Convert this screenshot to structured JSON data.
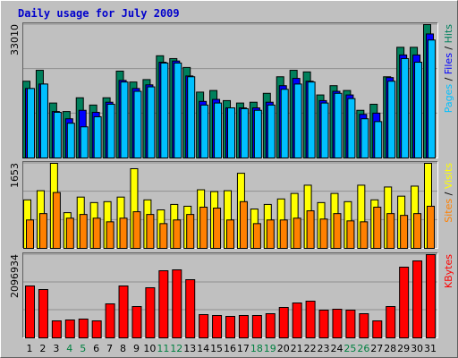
{
  "chart_data": [
    {
      "type": "bar",
      "title": "Daily usage for July 2009",
      "legend_separator": " / ",
      "grid": true,
      "ylim": [
        0,
        33010
      ],
      "yticks": [
        33010
      ],
      "series": [
        {
          "name": "Hits",
          "color": "#00805c",
          "values": [
            19000,
            21700,
            13600,
            11500,
            14900,
            13100,
            14900,
            21500,
            18800,
            19400,
            25300,
            24600,
            22400,
            16300,
            16700,
            14200,
            13600,
            13800,
            16000,
            20100,
            21700,
            21300,
            15600,
            17900,
            16700,
            11800,
            13300,
            20100,
            27400,
            27400,
            33010
          ]
        },
        {
          "name": "Files",
          "color": "#0000ff",
          "values": [
            17200,
            18300,
            11500,
            9700,
            11800,
            11300,
            13800,
            19200,
            17200,
            18100,
            23700,
            24000,
            20300,
            14000,
            14500,
            12400,
            12400,
            12400,
            13800,
            17900,
            19700,
            19000,
            14200,
            16500,
            15600,
            10800,
            11100,
            19900,
            25500,
            25500,
            30700
          ]
        },
        {
          "name": "Pages",
          "color": "#00c0ff",
          "values": [
            17200,
            18300,
            11300,
            8600,
            7700,
            10200,
            13300,
            18800,
            16500,
            17600,
            23500,
            23500,
            20100,
            13100,
            13600,
            12400,
            12200,
            11800,
            13100,
            17000,
            18300,
            18800,
            13600,
            16000,
            14700,
            9700,
            9000,
            19000,
            24600,
            23700,
            29200
          ]
        }
      ]
    },
    {
      "type": "bar",
      "legend_separator": " / ",
      "grid": true,
      "ylim": [
        0,
        1653
      ],
      "yticks": [
        1653
      ],
      "series": [
        {
          "name": "Visits",
          "color": "#ffff00",
          "values": [
            943,
            1121,
            1653,
            694,
            997,
            890,
            908,
            997,
            1549,
            943,
            748,
            854,
            819,
            1139,
            1104,
            1121,
            1460,
            765,
            854,
            961,
            1068,
            1228,
            890,
            1068,
            908,
            1228,
            943,
            1193,
            1015,
            1210,
            1653
          ]
        },
        {
          "name": "Sites",
          "color": "#ff8000",
          "values": [
            552,
            676,
            1086,
            587,
            659,
            587,
            516,
            587,
            712,
            659,
            481,
            552,
            659,
            801,
            783,
            552,
            908,
            481,
            552,
            552,
            587,
            730,
            570,
            676,
            534,
            516,
            801,
            676,
            641,
            676,
            819
          ]
        }
      ]
    },
    {
      "type": "bar",
      "grid": true,
      "ylim": [
        0,
        2096934
      ],
      "yticks": [
        2096934
      ],
      "categories": [
        "1",
        "2",
        "3",
        "4",
        "5",
        "6",
        "7",
        "8",
        "9",
        "10",
        "11",
        "12",
        "13",
        "14",
        "15",
        "16",
        "17",
        "18",
        "19",
        "20",
        "21",
        "22",
        "23",
        "24",
        "25",
        "26",
        "27",
        "28",
        "29",
        "30",
        "31"
      ],
      "category_colors": [
        "#000000",
        "#000000",
        "#000000",
        "#008040",
        "#008040",
        "#000000",
        "#000000",
        "#000000",
        "#000000",
        "#000000",
        "#008040",
        "#008040",
        "#000000",
        "#000000",
        "#000000",
        "#000000",
        "#000000",
        "#008040",
        "#008040",
        "#000000",
        "#000000",
        "#000000",
        "#000000",
        "#000000",
        "#008040",
        "#008040",
        "#000000",
        "#000000",
        "#000000",
        "#000000",
        "#000000"
      ],
      "series": [
        {
          "name": "KBytes",
          "color": "#ff0000",
          "values": [
            1307800,
            1217600,
            428400,
            451000,
            473500,
            428400,
            856800,
            1307800,
            789200,
            1262700,
            1691100,
            1713600,
            1465600,
            586200,
            563700,
            541200,
            563700,
            563700,
            608800,
            766600,
            879400,
            924500,
            699000,
            721500,
            699000,
            608800,
            428400,
            789200,
            1781300,
            1939100,
            2096934
          ]
        }
      ]
    }
  ]
}
